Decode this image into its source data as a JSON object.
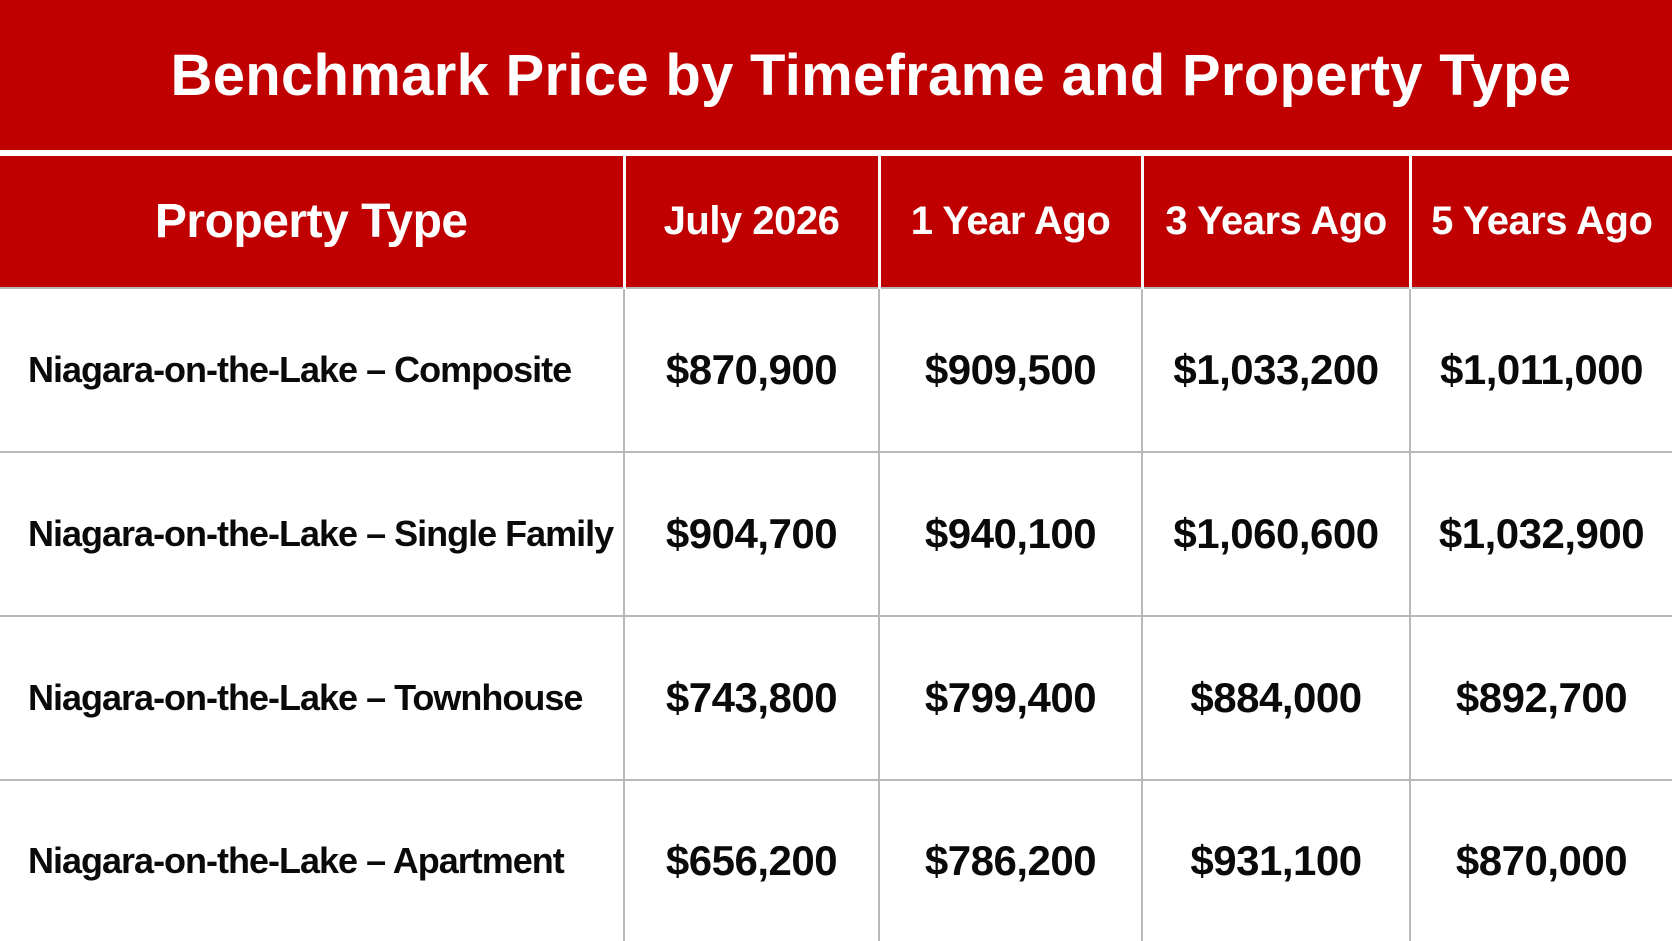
{
  "chart_data": {
    "type": "table",
    "title": "Benchmark Price by Timeframe and Property Type",
    "columns": [
      "Property Type",
      "July 2026",
      "1 Year Ago",
      "3 Years Ago",
      "5 Years Ago"
    ],
    "rows": [
      {
        "label": "Niagara-on-the-Lake – Composite",
        "values": [
          "$870,900",
          "$909,500",
          "$1,033,200",
          "$1,011,000"
        ]
      },
      {
        "label": "Niagara-on-the-Lake – Single Family",
        "values": [
          "$904,700",
          "$940,100",
          "$1,060,600",
          "$1,032,900"
        ]
      },
      {
        "label": "Niagara-on-the-Lake – Townhouse",
        "values": [
          "$743,800",
          "$799,400",
          "$884,000",
          "$892,700"
        ]
      },
      {
        "label": "Niagara-on-the-Lake – Apartment",
        "values": [
          "$656,200",
          "$786,200",
          "$931,100",
          "$870,000"
        ]
      }
    ],
    "colors": {
      "header_background": "#c00000",
      "header_text": "#ffffff",
      "body_background": "#ffffff",
      "body_text": "#0a0a0a",
      "grid_lines": "#b8b8b8"
    }
  }
}
